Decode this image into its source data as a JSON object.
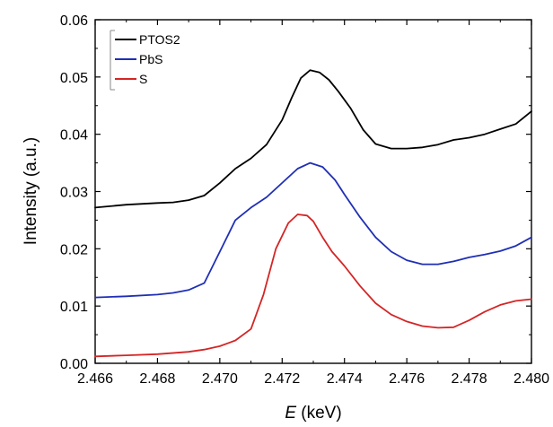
{
  "chart_data": {
    "type": "line",
    "title": "",
    "xlabel_var": "E",
    "xlabel_unit": " (keV)",
    "ylabel": "Intensity (a.u.)",
    "xlim": [
      2.466,
      2.48
    ],
    "ylim": [
      0.0,
      0.06
    ],
    "x_ticks": [
      2.466,
      2.468,
      2.47,
      2.472,
      2.474,
      2.476,
      2.478,
      2.48
    ],
    "x_tick_labels": [
      "2.466",
      "2.468",
      "2.470",
      "2.472",
      "2.474",
      "2.476",
      "2.478",
      "2.480"
    ],
    "y_ticks": [
      0.0,
      0.01,
      0.02,
      0.03,
      0.04,
      0.05,
      0.06
    ],
    "y_tick_labels": [
      "0.00",
      "0.01",
      "0.02",
      "0.03",
      "0.04",
      "0.05",
      "0.06"
    ],
    "grid": false,
    "legend_position": "top-left",
    "series": [
      {
        "name": "PTOS2",
        "color": "#000000",
        "x": [
          2.466,
          2.467,
          2.468,
          2.4685,
          2.469,
          2.4695,
          2.47,
          2.4705,
          2.471,
          2.4715,
          2.472,
          2.4723,
          2.4726,
          2.4729,
          2.4732,
          2.4735,
          2.4738,
          2.4742,
          2.4746,
          2.475,
          2.4755,
          2.476,
          2.4765,
          2.477,
          2.4775,
          2.478,
          2.4785,
          2.479,
          2.4795,
          2.48
        ],
        "y": [
          0.0272,
          0.0277,
          0.028,
          0.0281,
          0.0285,
          0.0293,
          0.0315,
          0.034,
          0.0358,
          0.0382,
          0.0425,
          0.0463,
          0.0498,
          0.0512,
          0.0508,
          0.0495,
          0.0475,
          0.0445,
          0.0408,
          0.0383,
          0.0375,
          0.0375,
          0.0377,
          0.0382,
          0.039,
          0.0394,
          0.04,
          0.0409,
          0.0418,
          0.044
        ]
      },
      {
        "name": "PbS",
        "color": "#1f2fb5",
        "x": [
          2.466,
          2.467,
          2.468,
          2.4685,
          2.469,
          2.4695,
          2.47,
          2.4705,
          2.471,
          2.4715,
          2.472,
          2.4725,
          2.4729,
          2.4733,
          2.4737,
          2.474,
          2.4745,
          2.475,
          2.4755,
          2.476,
          2.4765,
          2.477,
          2.4775,
          2.478,
          2.4785,
          2.479,
          2.4795,
          2.48
        ],
        "y": [
          0.0115,
          0.0117,
          0.012,
          0.0123,
          0.0128,
          0.014,
          0.0195,
          0.025,
          0.0272,
          0.029,
          0.0315,
          0.034,
          0.035,
          0.0343,
          0.032,
          0.0295,
          0.0255,
          0.022,
          0.0195,
          0.018,
          0.0173,
          0.0173,
          0.0178,
          0.0185,
          0.019,
          0.0196,
          0.0205,
          0.022
        ]
      },
      {
        "name": "S",
        "color": "#d42525",
        "x": [
          2.466,
          2.467,
          2.468,
          2.469,
          2.4695,
          2.47,
          2.4705,
          2.471,
          2.4714,
          2.4718,
          2.4722,
          2.4725,
          2.4728,
          2.473,
          2.4733,
          2.4736,
          2.474,
          2.4745,
          2.475,
          2.4755,
          2.476,
          2.4765,
          2.477,
          2.4775,
          2.478,
          2.4785,
          2.479,
          2.4795,
          2.48
        ],
        "y": [
          0.0012,
          0.0014,
          0.0016,
          0.002,
          0.0024,
          0.003,
          0.004,
          0.006,
          0.012,
          0.02,
          0.0245,
          0.026,
          0.0258,
          0.0248,
          0.022,
          0.0195,
          0.017,
          0.0135,
          0.0105,
          0.0085,
          0.0073,
          0.0065,
          0.0062,
          0.0063,
          0.0075,
          0.009,
          0.0102,
          0.0109,
          0.0112
        ]
      }
    ]
  }
}
